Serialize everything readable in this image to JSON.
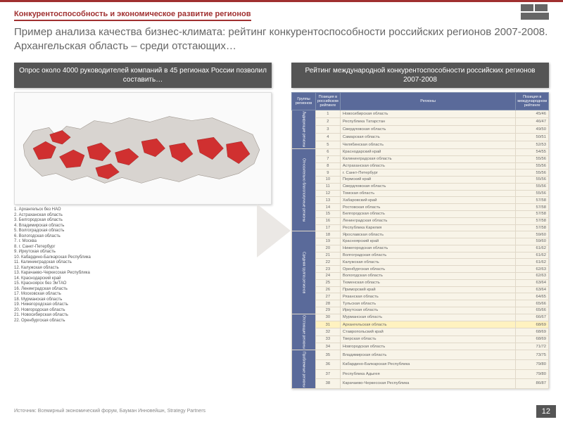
{
  "header": {
    "section_label": "Конкурентоспособность и экономическое развитие регионов",
    "title": "Пример анализа качества бизнес-климата: рейтинг конкурентоспособности российских регионов 2007-2008. Архангельская область – среди отстающих…"
  },
  "left": {
    "panel_title": "Опрос около 4000 руководителей компаний в 45 регионах России позволил составить…",
    "regions": [
      "Архангельск без НАО",
      "Астраханская область",
      "Белгородская область",
      "Владимирская область",
      "Волгоградская область",
      "Вологодская область",
      "г. Москва",
      "г. Санкт-Петербург",
      "Иркутская область",
      "Кабардино-Балкарская Республика",
      "Калининградская область",
      "Калужская область",
      "Карачаево-Черкесская Республика",
      "Краснодарский край",
      "Красноярск без ЭиТАО",
      "Ленинградская область",
      "Московская область",
      "Мурманская область",
      "Нижегородская область",
      "Новгородская область",
      "Новосибирская область",
      "Оренбургская область"
    ]
  },
  "right": {
    "panel_title": "Рейтинг международной конкурентоспособности российских регионов 2007-2008",
    "columns": [
      "Группы регионов",
      "Позиция в российском рейтинге",
      "Регионы",
      "Позиция в международном рейтинге"
    ],
    "groups": [
      {
        "name": "Лидирующие регионы",
        "rows": [
          {
            "n": 1,
            "r": "Новосибирская область",
            "s": "45/46"
          },
          {
            "n": 2,
            "r": "Республика Татарстан",
            "s": "46/47"
          },
          {
            "n": 3,
            "r": "Свердловская область",
            "s": "49/50"
          },
          {
            "n": 4,
            "r": "Самарская область",
            "s": "50/51"
          },
          {
            "n": 5,
            "r": "Челябинская область",
            "s": "52/53"
          }
        ]
      },
      {
        "name": "Относительно благополучные регионы",
        "rows": [
          {
            "n": 6,
            "r": "Краснодарский край",
            "s": "54/55"
          },
          {
            "n": 7,
            "r": "Калининградская область",
            "s": "55/56"
          },
          {
            "n": 8,
            "r": "Астраханская область",
            "s": "55/56"
          },
          {
            "n": 9,
            "r": "г. Санкт-Петербург",
            "s": "55/56"
          },
          {
            "n": 10,
            "r": "Пермский край",
            "s": "55/56"
          },
          {
            "n": 11,
            "r": "Свердловская область",
            "s": "55/56"
          },
          {
            "n": 12,
            "r": "Томская область",
            "s": "55/56"
          },
          {
            "n": 13,
            "r": "Хабаровский край",
            "s": "57/58"
          },
          {
            "n": 14,
            "r": "Ростовская область",
            "s": "57/58"
          },
          {
            "n": 15,
            "r": "Белгородская область",
            "s": "57/58"
          },
          {
            "n": 16,
            "r": "Ленинградская область",
            "s": "57/58"
          },
          {
            "n": 17,
            "r": "Республика Карелия",
            "s": "57/58"
          }
        ]
      },
      {
        "name": "Средняя группа регионов",
        "rows": [
          {
            "n": 18,
            "r": "Ярославская область",
            "s": "59/60"
          },
          {
            "n": 19,
            "r": "Красноярский край",
            "s": "59/60"
          },
          {
            "n": 20,
            "r": "Нижегородская область",
            "s": "61/62"
          },
          {
            "n": 21,
            "r": "Волгоградская область",
            "s": "61/62"
          },
          {
            "n": 22,
            "r": "Калужская область",
            "s": "61/62"
          },
          {
            "n": 23,
            "r": "Оренбургская область",
            "s": "62/63"
          },
          {
            "n": 24,
            "r": "Вологодская область",
            "s": "62/63"
          },
          {
            "n": 25,
            "r": "Тюменская область",
            "s": "63/64"
          },
          {
            "n": 26,
            "r": "Приморский край",
            "s": "63/64"
          },
          {
            "n": 27,
            "r": "Рязанская область",
            "s": "64/65"
          },
          {
            "n": 28,
            "r": "Тульская область",
            "s": "65/66"
          },
          {
            "n": 29,
            "r": "Иркутская область",
            "s": "65/66"
          }
        ]
      },
      {
        "name": "Отстающие регионы",
        "rows": [
          {
            "n": 30,
            "r": "Мурманская область",
            "s": "66/67"
          },
          {
            "n": 31,
            "r": "Архангельская область",
            "s": "68/69",
            "hl": true
          },
          {
            "n": 32,
            "r": "Ставропольский край",
            "s": "68/69"
          },
          {
            "n": 33,
            "r": "Тверская область",
            "s": "68/69"
          },
          {
            "n": 34,
            "r": "Новгородская область",
            "s": "71/72"
          }
        ]
      },
      {
        "name": "Проблемные регионы",
        "rows": [
          {
            "n": 35,
            "r": "Владимирская область",
            "s": "73/75"
          },
          {
            "n": 36,
            "r": "Кабардино-Балкарская Республика",
            "s": "79/80"
          },
          {
            "n": 37,
            "r": "Республика Адыгея",
            "s": "79/80"
          },
          {
            "n": 38,
            "r": "Карачаево-Черкесская Республика",
            "s": "86/87"
          }
        ]
      }
    ]
  },
  "map": {
    "land_color": "#d8d4d0",
    "highlight_color": "#d03030",
    "stroke": "#a09890"
  },
  "source": "Источник: Всемирный экономический форум, Бауман Инновейшн, Strategy Partners",
  "page": "12",
  "colors": {
    "accent": "#a03030",
    "panel_bg": "#555",
    "table_header": "#5a6a9a",
    "table_row": "#f8f4e8",
    "highlight_row": "#fff2c0"
  }
}
